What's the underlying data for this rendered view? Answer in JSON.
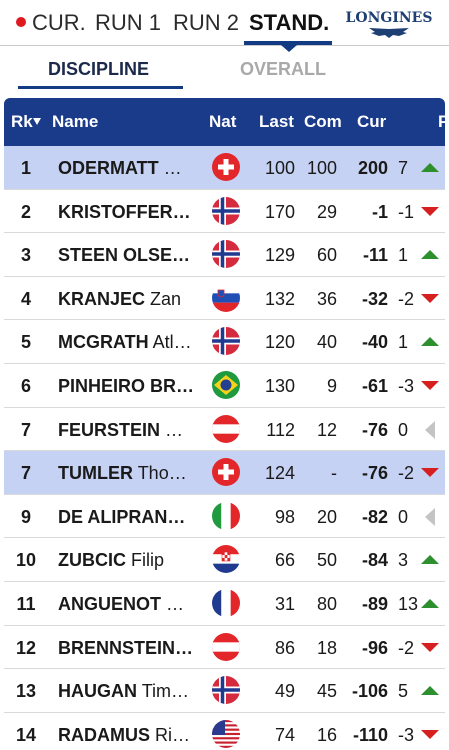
{
  "top_tabs": [
    {
      "label": "CUR."
    },
    {
      "label": "RUN 1"
    },
    {
      "label": "RUN 2"
    },
    {
      "label": "STAND."
    }
  ],
  "logo_text": "LONGINES",
  "sub_tabs": [
    {
      "label": "DISCIPLINE"
    },
    {
      "label": "OVERALL"
    }
  ],
  "columns": {
    "rk": "Rk",
    "name": "Name",
    "nat": "Nat",
    "last": "Last",
    "com": "Com",
    "cur": "Cur",
    "p": "P"
  },
  "colors": {
    "header": "#1a3a8a",
    "highlight": "#c6d2f3",
    "up": "#2e8f2e",
    "down": "#d62020",
    "live": "#e0191f"
  },
  "rows": [
    {
      "rank": "1",
      "last_name": "ODERMATT",
      "first_name": "…",
      "nat": "SUI",
      "last": "100",
      "com": "100",
      "cur": "200",
      "pos": "7",
      "trend": "up",
      "highlight": true
    },
    {
      "rank": "2",
      "last_name": "KRISTOFFER…",
      "first_name": "",
      "nat": "NOR",
      "last": "170",
      "com": "29",
      "cur": "-1",
      "pos": "-1",
      "trend": "down",
      "highlight": false
    },
    {
      "rank": "3",
      "last_name": "STEEN OLSE…",
      "first_name": "",
      "nat": "NOR",
      "last": "129",
      "com": "60",
      "cur": "-11",
      "pos": "1",
      "trend": "up",
      "highlight": false
    },
    {
      "rank": "4",
      "last_name": "KRANJEC",
      "first_name": "Zan",
      "nat": "SLO",
      "last": "132",
      "com": "36",
      "cur": "-32",
      "pos": "-2",
      "trend": "down",
      "highlight": false
    },
    {
      "rank": "5",
      "last_name": "MCGRATH",
      "first_name": "Atl…",
      "nat": "NOR",
      "last": "120",
      "com": "40",
      "cur": "-40",
      "pos": "1",
      "trend": "up",
      "highlight": false
    },
    {
      "rank": "6",
      "last_name": "PINHEIRO BR…",
      "first_name": "",
      "nat": "BRA",
      "last": "130",
      "com": "9",
      "cur": "-61",
      "pos": "-3",
      "trend": "down",
      "highlight": false
    },
    {
      "rank": "7",
      "last_name": "FEURSTEIN",
      "first_name": "P…",
      "nat": "AUT",
      "last": "112",
      "com": "12",
      "cur": "-76",
      "pos": "0",
      "trend": "same",
      "highlight": false
    },
    {
      "rank": "7",
      "last_name": "TUMLER",
      "first_name": "Tho…",
      "nat": "SUI",
      "last": "124",
      "com": "-",
      "cur": "-76",
      "pos": "-2",
      "trend": "down",
      "highlight": true
    },
    {
      "rank": "9",
      "last_name": "DE ALIPRAN…",
      "first_name": "",
      "nat": "ITA",
      "last": "98",
      "com": "20",
      "cur": "-82",
      "pos": "0",
      "trend": "same",
      "highlight": false
    },
    {
      "rank": "10",
      "last_name": "ZUBCIC",
      "first_name": "Filip",
      "nat": "CRO",
      "last": "66",
      "com": "50",
      "cur": "-84",
      "pos": "3",
      "trend": "up",
      "highlight": false
    },
    {
      "rank": "11",
      "last_name": "ANGUENOT",
      "first_name": "L…",
      "nat": "FRA",
      "last": "31",
      "com": "80",
      "cur": "-89",
      "pos": "13",
      "trend": "up",
      "highlight": false
    },
    {
      "rank": "12",
      "last_name": "BRENNSTEIN…",
      "first_name": "",
      "nat": "AUT",
      "last": "86",
      "com": "18",
      "cur": "-96",
      "pos": "-2",
      "trend": "down",
      "highlight": false
    },
    {
      "rank": "13",
      "last_name": "HAUGAN",
      "first_name": "Tim…",
      "nat": "NOR",
      "last": "49",
      "com": "45",
      "cur": "-106",
      "pos": "5",
      "trend": "up",
      "highlight": false
    },
    {
      "rank": "14",
      "last_name": "RADAMUS",
      "first_name": "Ri…",
      "nat": "USA",
      "last": "74",
      "com": "16",
      "cur": "-110",
      "pos": "-3",
      "trend": "down",
      "highlight": false
    }
  ]
}
